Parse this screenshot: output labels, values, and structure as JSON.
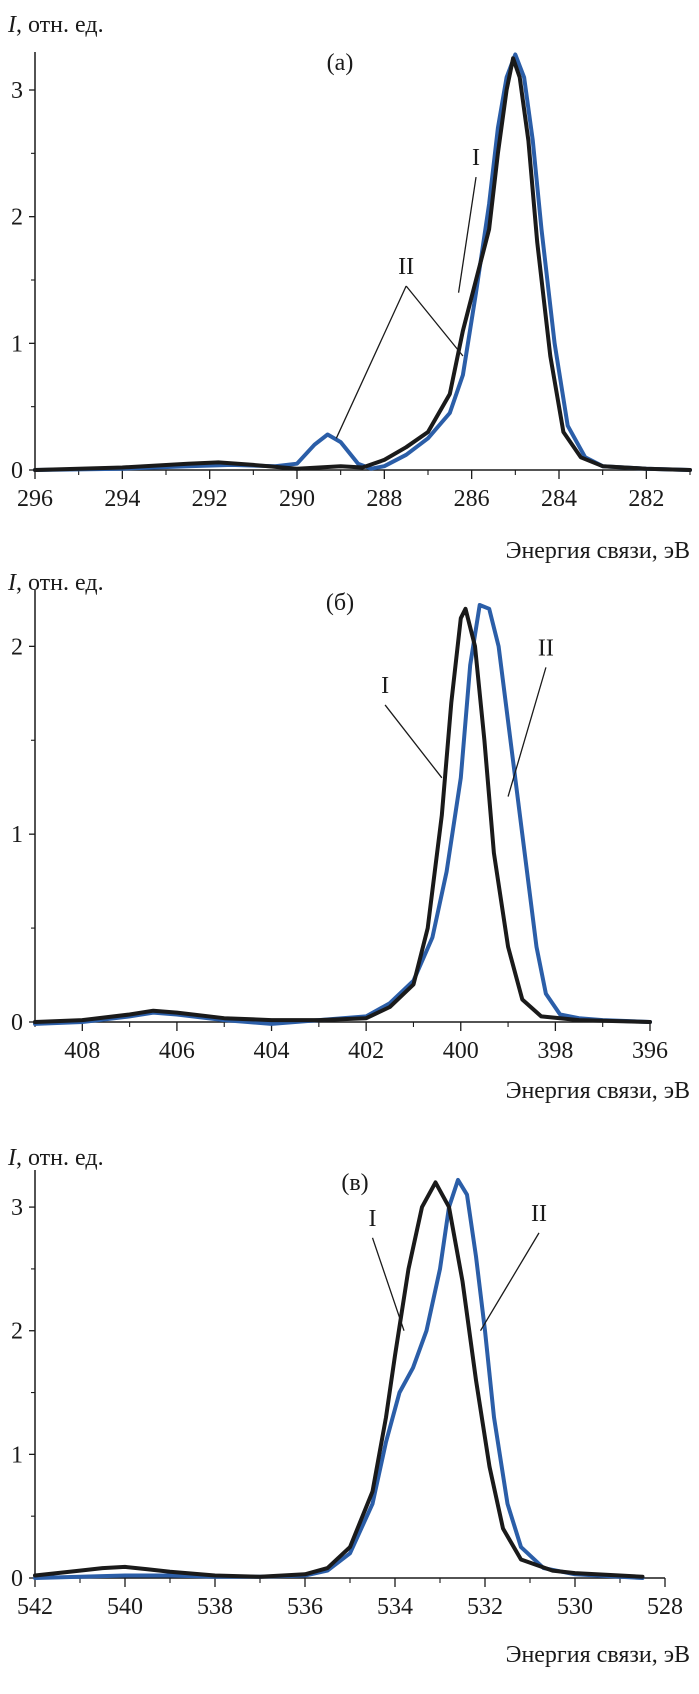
{
  "colors": {
    "axis": "#1a1a1a",
    "series_I": "#1a1a1a",
    "series_II": "#2b5ea8"
  },
  "chart_data": [
    {
      "type": "line",
      "panel_label": "(a)",
      "ylabel_italic": "I",
      "ylabel_rest": ", отн. ед.",
      "xlabel": "Энергия связи, эВ",
      "xlim": [
        296,
        281
      ],
      "ylim": [
        0,
        3.3
      ],
      "xticks": [
        296,
        294,
        292,
        290,
        288,
        286,
        284,
        282
      ],
      "yticks": [
        0,
        1,
        2,
        3
      ],
      "series": [
        {
          "name": "I",
          "points": [
            [
              296,
              0
            ],
            [
              294,
              0.02
            ],
            [
              292.5,
              0.05
            ],
            [
              291.8,
              0.06
            ],
            [
              291,
              0.04
            ],
            [
              290,
              0.01
            ],
            [
              289.5,
              0.02
            ],
            [
              289,
              0.03
            ],
            [
              288.5,
              0.02
            ],
            [
              288,
              0.08
            ],
            [
              287.5,
              0.18
            ],
            [
              287,
              0.3
            ],
            [
              286.5,
              0.6
            ],
            [
              286.2,
              1.1
            ],
            [
              285.9,
              1.5
            ],
            [
              285.6,
              1.9
            ],
            [
              285.4,
              2.5
            ],
            [
              285.2,
              3.0
            ],
            [
              285.05,
              3.25
            ],
            [
              284.9,
              3.1
            ],
            [
              284.7,
              2.6
            ],
            [
              284.5,
              1.8
            ],
            [
              284.2,
              0.9
            ],
            [
              283.9,
              0.3
            ],
            [
              283.5,
              0.1
            ],
            [
              283,
              0.03
            ],
            [
              282,
              0.01
            ],
            [
              281,
              0
            ]
          ]
        },
        {
          "name": "II",
          "points": [
            [
              296,
              0
            ],
            [
              294,
              0.01
            ],
            [
              292.5,
              0.03
            ],
            [
              291.5,
              0.04
            ],
            [
              290.5,
              0.03
            ],
            [
              290,
              0.05
            ],
            [
              289.6,
              0.2
            ],
            [
              289.3,
              0.28
            ],
            [
              289,
              0.22
            ],
            [
              288.6,
              0.05
            ],
            [
              288.3,
              0.01
            ],
            [
              288,
              0.03
            ],
            [
              287.5,
              0.12
            ],
            [
              287,
              0.25
            ],
            [
              286.5,
              0.45
            ],
            [
              286.2,
              0.75
            ],
            [
              285.9,
              1.4
            ],
            [
              285.6,
              2.1
            ],
            [
              285.4,
              2.7
            ],
            [
              285.2,
              3.1
            ],
            [
              285.0,
              3.28
            ],
            [
              284.8,
              3.1
            ],
            [
              284.6,
              2.6
            ],
            [
              284.4,
              1.9
            ],
            [
              284.1,
              1.0
            ],
            [
              283.8,
              0.35
            ],
            [
              283.4,
              0.1
            ],
            [
              283,
              0.03
            ],
            [
              282,
              0.01
            ],
            [
              281,
              0
            ]
          ]
        }
      ],
      "annotations": [
        {
          "text": "I",
          "x": 285.9,
          "y": 2.36,
          "arrows": [
            [
              286.3,
              1.4
            ]
          ]
        },
        {
          "text": "II",
          "x": 287.5,
          "y": 1.5,
          "arrows": [
            [
              289.1,
              0.25
            ],
            [
              286.2,
              0.9
            ]
          ]
        }
      ]
    },
    {
      "type": "line",
      "panel_label": "(б)",
      "ylabel_italic": "I",
      "ylabel_rest": ", отн. ед.",
      "xlabel": "Энергия связи, эВ",
      "xlim": [
        409,
        396
      ],
      "ylim": [
        0,
        2.3
      ],
      "xticks": [
        408,
        406,
        404,
        402,
        400,
        398,
        396
      ],
      "yticks": [
        0,
        1,
        2
      ],
      "series": [
        {
          "name": "I",
          "points": [
            [
              409,
              0
            ],
            [
              408,
              0.01
            ],
            [
              407,
              0.04
            ],
            [
              406.5,
              0.06
            ],
            [
              406,
              0.05
            ],
            [
              405,
              0.02
            ],
            [
              404,
              0.01
            ],
            [
              403,
              0.01
            ],
            [
              402,
              0.02
            ],
            [
              401.5,
              0.08
            ],
            [
              401,
              0.2
            ],
            [
              400.7,
              0.5
            ],
            [
              400.4,
              1.1
            ],
            [
              400.2,
              1.7
            ],
            [
              400.0,
              2.15
            ],
            [
              399.9,
              2.2
            ],
            [
              399.7,
              2.0
            ],
            [
              399.5,
              1.5
            ],
            [
              399.3,
              0.9
            ],
            [
              399.0,
              0.4
            ],
            [
              398.7,
              0.12
            ],
            [
              398.3,
              0.03
            ],
            [
              397.5,
              0.01
            ],
            [
              396,
              0
            ]
          ]
        },
        {
          "name": "II",
          "points": [
            [
              409,
              -0.01
            ],
            [
              408,
              0.0
            ],
            [
              407,
              0.03
            ],
            [
              406.5,
              0.05
            ],
            [
              406,
              0.04
            ],
            [
              405,
              0.01
            ],
            [
              404.5,
              0.0
            ],
            [
              404,
              -0.01
            ],
            [
              403,
              0.01
            ],
            [
              402,
              0.03
            ],
            [
              401.5,
              0.1
            ],
            [
              401,
              0.22
            ],
            [
              400.6,
              0.45
            ],
            [
              400.3,
              0.8
            ],
            [
              400.0,
              1.3
            ],
            [
              399.8,
              1.9
            ],
            [
              399.6,
              2.22
            ],
            [
              399.4,
              2.2
            ],
            [
              399.2,
              2.0
            ],
            [
              399.0,
              1.6
            ],
            [
              398.7,
              1.0
            ],
            [
              398.4,
              0.4
            ],
            [
              398.2,
              0.15
            ],
            [
              397.9,
              0.04
            ],
            [
              397.5,
              0.02
            ],
            [
              397,
              0.01
            ],
            [
              396,
              0
            ]
          ]
        }
      ],
      "annotations": [
        {
          "text": "I",
          "x": 401.6,
          "y": 1.72,
          "arrows": [
            [
              400.4,
              1.3
            ]
          ]
        },
        {
          "text": "II",
          "x": 398.2,
          "y": 1.92,
          "arrows": [
            [
              399.0,
              1.2
            ]
          ]
        }
      ]
    },
    {
      "type": "line",
      "panel_label": "(в)",
      "ylabel_italic": "I",
      "ylabel_rest": ", отн. ед.",
      "xlabel": "Энергия связи, эВ",
      "xlim": [
        542,
        528
      ],
      "ylim": [
        0,
        3.3
      ],
      "xticks": [
        542,
        540,
        538,
        536,
        534,
        532,
        530,
        528
      ],
      "yticks": [
        0,
        1,
        2,
        3
      ],
      "series": [
        {
          "name": "I",
          "points": [
            [
              542,
              0.02
            ],
            [
              541,
              0.06
            ],
            [
              540.5,
              0.08
            ],
            [
              540,
              0.09
            ],
            [
              539.5,
              0.07
            ],
            [
              539,
              0.05
            ],
            [
              538,
              0.02
            ],
            [
              537,
              0.01
            ],
            [
              536,
              0.03
            ],
            [
              535.5,
              0.08
            ],
            [
              535,
              0.25
            ],
            [
              534.5,
              0.7
            ],
            [
              534.2,
              1.3
            ],
            [
              534,
              1.8
            ],
            [
              533.7,
              2.5
            ],
            [
              533.4,
              3.0
            ],
            [
              533.1,
              3.2
            ],
            [
              532.8,
              3.0
            ],
            [
              532.5,
              2.4
            ],
            [
              532.2,
              1.6
            ],
            [
              531.9,
              0.9
            ],
            [
              531.6,
              0.4
            ],
            [
              531.2,
              0.15
            ],
            [
              530.5,
              0.06
            ],
            [
              530,
              0.04
            ],
            [
              529,
              0.02
            ],
            [
              528.5,
              0.01
            ]
          ]
        },
        {
          "name": "II",
          "points": [
            [
              542,
              0.0
            ],
            [
              541,
              0.01
            ],
            [
              540,
              0.02
            ],
            [
              539,
              0.02
            ],
            [
              538,
              0.01
            ],
            [
              537,
              0.01
            ],
            [
              536,
              0.02
            ],
            [
              535.5,
              0.06
            ],
            [
              535,
              0.2
            ],
            [
              534.5,
              0.6
            ],
            [
              534.2,
              1.1
            ],
            [
              533.9,
              1.5
            ],
            [
              533.6,
              1.7
            ],
            [
              533.3,
              2.0
            ],
            [
              533.0,
              2.5
            ],
            [
              532.8,
              3.0
            ],
            [
              532.6,
              3.22
            ],
            [
              532.4,
              3.1
            ],
            [
              532.2,
              2.6
            ],
            [
              532.0,
              2.0
            ],
            [
              531.8,
              1.3
            ],
            [
              531.5,
              0.6
            ],
            [
              531.2,
              0.25
            ],
            [
              530.7,
              0.08
            ],
            [
              530,
              0.03
            ],
            [
              529,
              0.01
            ],
            [
              528.5,
              0
            ]
          ]
        }
      ],
      "annotations": [
        {
          "text": "I",
          "x": 534.5,
          "y": 2.8,
          "arrows": [
            [
              533.8,
              2.0
            ]
          ]
        },
        {
          "text": "II",
          "x": 530.8,
          "y": 2.84,
          "arrows": [
            [
              532.1,
              2.0
            ]
          ]
        }
      ]
    }
  ]
}
